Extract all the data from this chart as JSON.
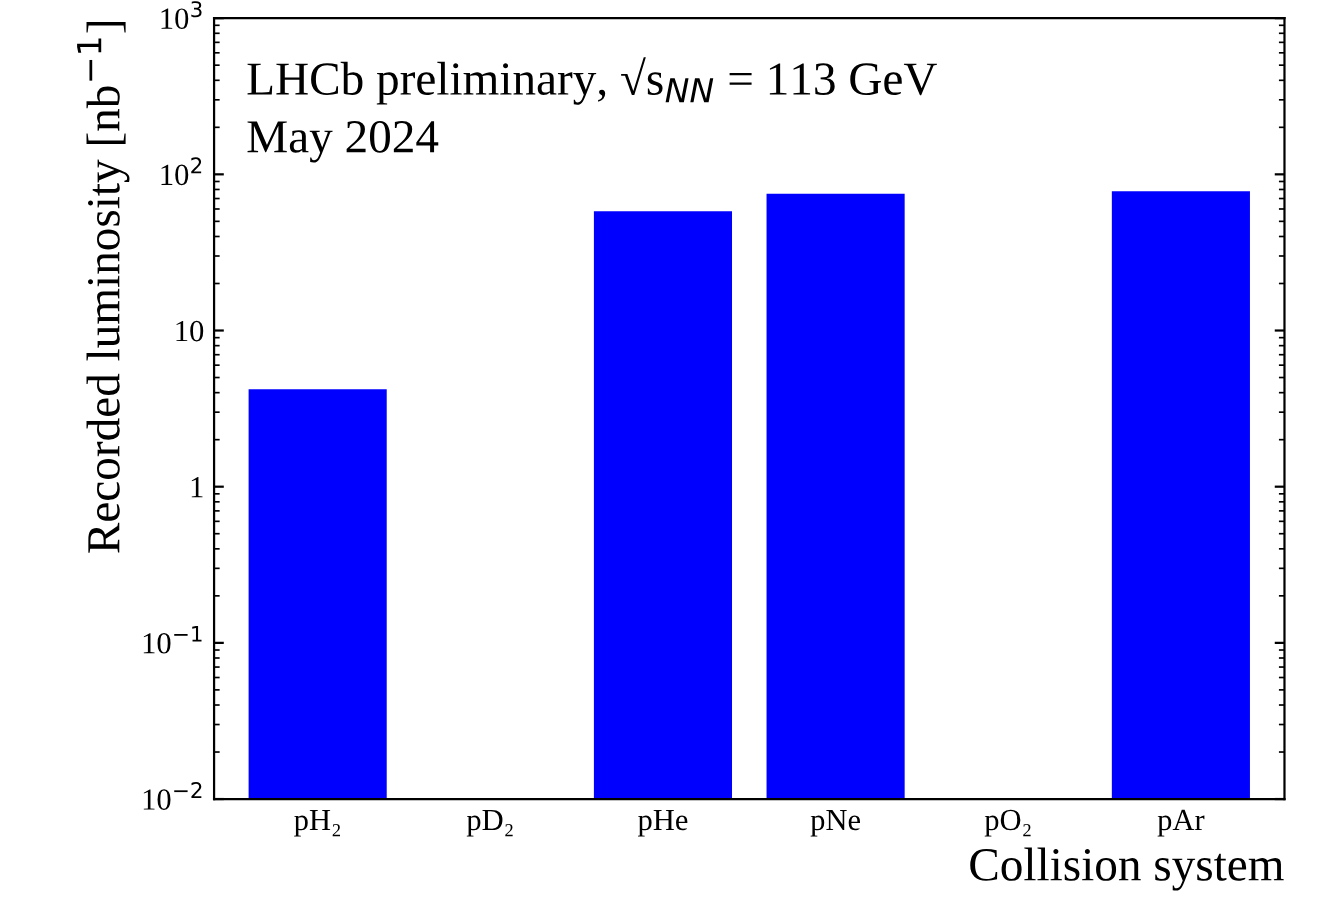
{
  "chart_data": {
    "type": "bar",
    "xlabel": "Collision system",
    "ylabel": "Recorded luminosity [nb$^{−1}$]",
    "categories": [
      "pH₂",
      "pD₂",
      "pHe",
      "pNe",
      "pO₂",
      "pAr"
    ],
    "values": [
      4.2,
      null,
      58,
      75,
      null,
      78
    ],
    "color": "#0000ff",
    "log": true,
    "ylim": [
      0.01,
      1000
    ],
    "yticks": [
      {
        "value": 0.01,
        "label": "10$^{−2}$"
      },
      {
        "value": 0.1,
        "label": "10$^{−1}$"
      },
      1,
      10,
      {
        "value": 100,
        "label": "10$^{2}$"
      },
      {
        "value": 1000,
        "label": "10$^{3}$"
      }
    ],
    "annotations": [
      "LHCb preliminary, √s$_{NN}$ = 113 GeV",
      "May 2024"
    ],
    "grid": false,
    "legend": false
  }
}
